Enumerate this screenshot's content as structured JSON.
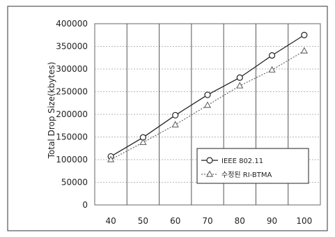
{
  "chart_data": {
    "type": "line",
    "ylabel": "Total Drop Size(kbytes)",
    "xlabel": "",
    "x": [
      40,
      50,
      60,
      70,
      80,
      90,
      100
    ],
    "xlim": [
      35,
      105
    ],
    "ylim": [
      0,
      400000
    ],
    "yticks": [
      0,
      50000,
      100000,
      150000,
      200000,
      250000,
      300000,
      350000,
      400000
    ],
    "grid": true,
    "legend_position": "lower-right",
    "series": [
      {
        "name": "IEEE 802.11",
        "marker": "circle",
        "line_style": "solid",
        "color": "#222222",
        "values": [
          107000,
          149000,
          198000,
          243000,
          281000,
          330000,
          375000
        ]
      },
      {
        "name": "수정된 RI-BTMA",
        "marker": "triangle",
        "line_style": "dotted",
        "color": "#666666",
        "values": [
          100000,
          138000,
          177000,
          220000,
          263000,
          298000,
          340000
        ]
      }
    ]
  }
}
